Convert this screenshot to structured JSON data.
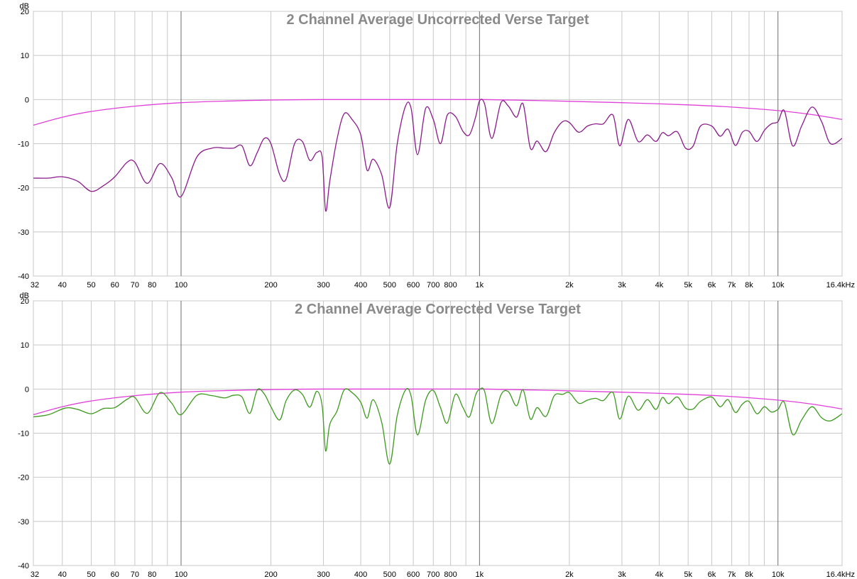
{
  "chart_data": [
    {
      "type": "line",
      "title": "2 Channel Average Uncorrected Verse Target",
      "ylabel": "dB",
      "xscale": "log",
      "xlim": [
        32,
        16400
      ],
      "ylim": [
        -40,
        20
      ],
      "grid": true,
      "yticks": [
        20,
        10,
        0,
        -10,
        -20,
        -30,
        -40
      ],
      "xticks": [
        {
          "value": 32,
          "label": "32"
        },
        {
          "value": 40,
          "label": "40"
        },
        {
          "value": 50,
          "label": "50"
        },
        {
          "value": 60,
          "label": "60"
        },
        {
          "value": 70,
          "label": "70"
        },
        {
          "value": 80,
          "label": "80"
        },
        {
          "value": 100,
          "label": "100"
        },
        {
          "value": 200,
          "label": "200"
        },
        {
          "value": 300,
          "label": "300"
        },
        {
          "value": 400,
          "label": "400"
        },
        {
          "value": 500,
          "label": "500"
        },
        {
          "value": 600,
          "label": "600"
        },
        {
          "value": 700,
          "label": "700"
        },
        {
          "value": 800,
          "label": "800"
        },
        {
          "value": 1000,
          "label": "1k"
        },
        {
          "value": 2000,
          "label": "2k"
        },
        {
          "value": 3000,
          "label": "3k"
        },
        {
          "value": 4000,
          "label": "4k"
        },
        {
          "value": 5000,
          "label": "5k"
        },
        {
          "value": 6000,
          "label": "6k"
        },
        {
          "value": 7000,
          "label": "7k"
        },
        {
          "value": 8000,
          "label": "8k"
        },
        {
          "value": 10000,
          "label": "10k"
        },
        {
          "value": 16400,
          "label": "16.4kHz"
        }
      ],
      "series": [
        {
          "color": "#e040d8",
          "x": [
            32,
            40,
            50,
            70,
            100,
            150,
            200,
            300,
            400,
            600,
            1000,
            1500,
            2000,
            3000,
            5000,
            7000,
            10000,
            13000,
            16400
          ],
          "y": [
            -5.8,
            -4,
            -2.7,
            -1.5,
            -0.7,
            -0.3,
            -0.1,
            0,
            0,
            0,
            0,
            -0.2,
            -0.4,
            -0.7,
            -1.2,
            -1.7,
            -2.5,
            -3.4,
            -4.5
          ]
        },
        {
          "color": "#8b1a8b",
          "x": [
            32,
            36,
            40,
            45,
            50,
            55,
            60,
            66,
            70,
            77,
            85,
            93,
            100,
            113,
            127,
            140,
            150,
            160,
            170,
            180,
            190,
            200,
            214,
            225,
            240,
            255,
            270,
            285,
            297,
            305,
            315,
            333,
            352,
            374,
            400,
            420,
            440,
            470,
            500,
            530,
            565,
            590,
            620,
            660,
            700,
            740,
            780,
            830,
            880,
            925,
            970,
            1000,
            1040,
            1100,
            1180,
            1250,
            1330,
            1400,
            1480,
            1560,
            1670,
            1780,
            1900,
            2000,
            2150,
            2300,
            2450,
            2600,
            2800,
            2950,
            3150,
            3400,
            3650,
            3900,
            4100,
            4300,
            4600,
            4900,
            5200,
            5500,
            6000,
            6400,
            6800,
            7200,
            7600,
            8000,
            8500,
            9000,
            9500,
            10000,
            10500,
            11200,
            12000,
            13000,
            14000,
            15000,
            16400
          ],
          "y": [
            -17.8,
            -17.8,
            -17.5,
            -18.5,
            -20.8,
            -19.5,
            -17.5,
            -14.2,
            -14.2,
            -19,
            -14.5,
            -17.7,
            -22,
            -13,
            -11,
            -11,
            -11,
            -10.5,
            -15,
            -12,
            -8.8,
            -10,
            -17,
            -18,
            -10,
            -9.5,
            -13.8,
            -12,
            -13,
            -25.2,
            -18.5,
            -9,
            -3.2,
            -4.5,
            -8,
            -16,
            -13.5,
            -17,
            -24.5,
            -10,
            -1.5,
            -2,
            -12.5,
            -2,
            -4.5,
            -10,
            -3.5,
            -3.8,
            -7.2,
            -8,
            -4,
            -0.3,
            -1,
            -8.8,
            -0.7,
            -1.5,
            -4,
            -1,
            -11,
            -9.4,
            -11.8,
            -7.5,
            -5,
            -5.2,
            -7.4,
            -6,
            -5.5,
            -5.5,
            -3.5,
            -10.5,
            -4.5,
            -9.5,
            -8,
            -9.5,
            -7.5,
            -8.2,
            -7.3,
            -11,
            -10.5,
            -6,
            -6,
            -8.3,
            -6.7,
            -10.4,
            -7.4,
            -7.2,
            -9.5,
            -7,
            -5.5,
            -5,
            -2.5,
            -10.5,
            -6,
            -1.7,
            -5,
            -10,
            -8.8
          ]
        }
      ]
    },
    {
      "type": "line",
      "title": "2 Channel Average Corrected Verse Target",
      "ylabel": "dB",
      "xscale": "log",
      "xlim": [
        32,
        16400
      ],
      "ylim": [
        -40,
        20
      ],
      "grid": true,
      "yticks": [
        20,
        10,
        0,
        -10,
        -20,
        -30,
        -40
      ],
      "xticks": [
        {
          "value": 32,
          "label": "32"
        },
        {
          "value": 40,
          "label": "40"
        },
        {
          "value": 50,
          "label": "50"
        },
        {
          "value": 60,
          "label": "60"
        },
        {
          "value": 70,
          "label": "70"
        },
        {
          "value": 80,
          "label": "80"
        },
        {
          "value": 100,
          "label": "100"
        },
        {
          "value": 200,
          "label": "200"
        },
        {
          "value": 300,
          "label": "300"
        },
        {
          "value": 400,
          "label": "400"
        },
        {
          "value": 500,
          "label": "500"
        },
        {
          "value": 600,
          "label": "600"
        },
        {
          "value": 700,
          "label": "700"
        },
        {
          "value": 800,
          "label": "800"
        },
        {
          "value": 1000,
          "label": "1k"
        },
        {
          "value": 2000,
          "label": "2k"
        },
        {
          "value": 3000,
          "label": "3k"
        },
        {
          "value": 4000,
          "label": "4k"
        },
        {
          "value": 5000,
          "label": "5k"
        },
        {
          "value": 6000,
          "label": "6k"
        },
        {
          "value": 7000,
          "label": "7k"
        },
        {
          "value": 8000,
          "label": "8k"
        },
        {
          "value": 10000,
          "label": "10k"
        },
        {
          "value": 16400,
          "label": "16.4kHz"
        }
      ],
      "series": [
        {
          "color": "#e040d8",
          "x": [
            32,
            40,
            50,
            70,
            100,
            150,
            200,
            300,
            400,
            600,
            1000,
            1500,
            2000,
            3000,
            5000,
            7000,
            10000,
            13000,
            16400
          ],
          "y": [
            -5.8,
            -4,
            -2.7,
            -1.5,
            -0.7,
            -0.3,
            -0.1,
            0,
            0,
            0,
            0,
            -0.2,
            -0.4,
            -0.7,
            -1.2,
            -1.7,
            -2.5,
            -3.4,
            -4.5
          ]
        },
        {
          "color": "#3d9a1e",
          "x": [
            32,
            36,
            41,
            45,
            50,
            55,
            60,
            66,
            70,
            77,
            85,
            93,
            100,
            113,
            127,
            140,
            150,
            160,
            170,
            180,
            190,
            200,
            214,
            225,
            240,
            255,
            270,
            285,
            297,
            305,
            315,
            333,
            352,
            374,
            400,
            420,
            440,
            470,
            500,
            530,
            565,
            590,
            620,
            660,
            700,
            740,
            780,
            830,
            880,
            925,
            970,
            1000,
            1040,
            1100,
            1180,
            1250,
            1330,
            1400,
            1480,
            1560,
            1670,
            1780,
            1900,
            2000,
            2150,
            2300,
            2450,
            2600,
            2800,
            2950,
            3150,
            3400,
            3650,
            3900,
            4100,
            4300,
            4600,
            4900,
            5200,
            5500,
            6000,
            6400,
            6800,
            7200,
            7600,
            8000,
            8500,
            9000,
            9500,
            10000,
            10500,
            11200,
            12000,
            13000,
            14000,
            15000,
            16400
          ],
          "y": [
            -6.3,
            -5.8,
            -4.3,
            -4.6,
            -5.6,
            -4.4,
            -4.2,
            -2.3,
            -1.9,
            -5.5,
            -0.8,
            -3.2,
            -5.8,
            -1.4,
            -1.5,
            -2,
            -1.4,
            -1.8,
            -5.5,
            -0.2,
            -1.1,
            -4,
            -7,
            -2.6,
            -0.2,
            -1.2,
            -4.1,
            -0.5,
            -3.8,
            -14,
            -8,
            -5,
            -0.2,
            -0.8,
            -3,
            -6.6,
            -2.4,
            -7.5,
            -17,
            -6,
            -0.2,
            -1.6,
            -10.4,
            -2.5,
            -0.3,
            -4.2,
            -7.7,
            -1.2,
            -4.2,
            -6.3,
            -1.4,
            -0.1,
            -0.5,
            -7.8,
            -1.3,
            -0.6,
            -3.8,
            -0.2,
            -6.8,
            -4.2,
            -6.2,
            -1.5,
            -1.2,
            -0.8,
            -3.2,
            -2.5,
            -2.1,
            -2.6,
            -0.8,
            -6.8,
            -1.6,
            -4.8,
            -2.4,
            -4.6,
            -1.9,
            -3.3,
            -1.8,
            -4.3,
            -4.5,
            -2.8,
            -1.8,
            -4,
            -2.4,
            -5.3,
            -3.4,
            -2.8,
            -5.6,
            -4,
            -5.2,
            -4.6,
            -3,
            -10.3,
            -7,
            -4,
            -6.5,
            -7.2,
            -5.6
          ]
        }
      ]
    }
  ]
}
